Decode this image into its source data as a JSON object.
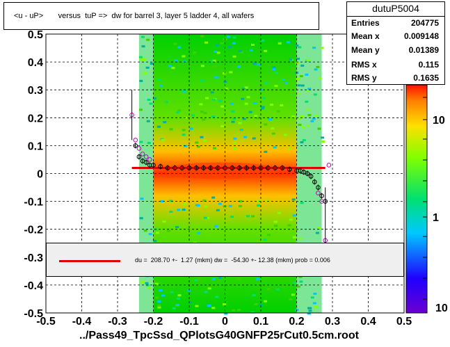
{
  "title": "<u - uP>       versus  tuP =>  dw for barrel 3, layer 5 ladder 4, all wafers",
  "stats": {
    "name": "dutuP5004",
    "rows": [
      {
        "label": "Entries",
        "value": "204775"
      },
      {
        "label": "Mean x",
        "value": "0.009148"
      },
      {
        "label": "Mean y",
        "value": "0.01389"
      },
      {
        "label": "RMS x",
        "value": "0.115"
      },
      {
        "label": "RMS y",
        "value": "0.1635"
      }
    ]
  },
  "fit_text": "du =  208.70 +-  1.27 (mkm) dw =  -54.30 +- 12.38 (mkm) prob = 0.006",
  "xlabel": "../Pass49_TpcSsd_QPlotsG40GNFP25rCut0.5cm.root",
  "chart_data": {
    "type": "heatmap",
    "xlim": [
      -0.5,
      0.5
    ],
    "ylim": [
      -0.5,
      0.5
    ],
    "x_ticks": [
      "-0.5",
      "-0.4",
      "-0.3",
      "-0.2",
      "-0.1",
      "0",
      "0.1",
      "0.2",
      "0.3",
      "0.4",
      "0.5"
    ],
    "y_ticks": [
      "-0.5",
      "-0.4",
      "-0.3",
      "-0.2",
      "-0.1",
      "0",
      "0.1",
      "0.2",
      "0.3",
      "0.4",
      "0.5"
    ],
    "color_scale": {
      "type": "log",
      "tick_labels": [
        "1",
        "10"
      ]
    },
    "grid": true,
    "fit_line": {
      "x": [
        -0.26,
        0.28
      ],
      "y": [
        0.02,
        0.02
      ],
      "color": "#e00000"
    },
    "profile_points": {
      "x": [
        -0.25,
        -0.24,
        -0.23,
        -0.22,
        -0.21,
        -0.2,
        -0.18,
        -0.16,
        -0.14,
        -0.12,
        -0.1,
        -0.08,
        -0.06,
        -0.04,
        -0.02,
        0.0,
        0.02,
        0.04,
        0.06,
        0.08,
        0.1,
        0.12,
        0.14,
        0.16,
        0.18,
        0.2,
        0.21,
        0.22,
        0.23,
        0.24,
        0.25,
        0.26,
        0.27,
        0.28
      ],
      "y": [
        0.1,
        0.06,
        0.045,
        0.04,
        0.03,
        0.03,
        0.025,
        0.02,
        0.02,
        0.02,
        0.02,
        0.02,
        0.02,
        0.02,
        0.02,
        0.02,
        0.02,
        0.02,
        0.02,
        0.02,
        0.02,
        0.02,
        0.02,
        0.02,
        0.015,
        0.01,
        0.01,
        0.005,
        0.0,
        -0.01,
        -0.03,
        -0.05,
        -0.08,
        -0.1
      ]
    },
    "outlier_points": {
      "x": [
        -0.26,
        -0.25,
        -0.24,
        -0.23,
        -0.22,
        -0.21,
        0.26,
        0.27,
        0.28,
        0.29
      ],
      "y": [
        0.21,
        0.12,
        0.09,
        0.07,
        0.06,
        0.05,
        -0.07,
        -0.1,
        -0.24,
        0.03
      ]
    },
    "colors": {
      "fit": "#e00000",
      "profile": "#000000",
      "outlier": "#c000c0"
    }
  }
}
